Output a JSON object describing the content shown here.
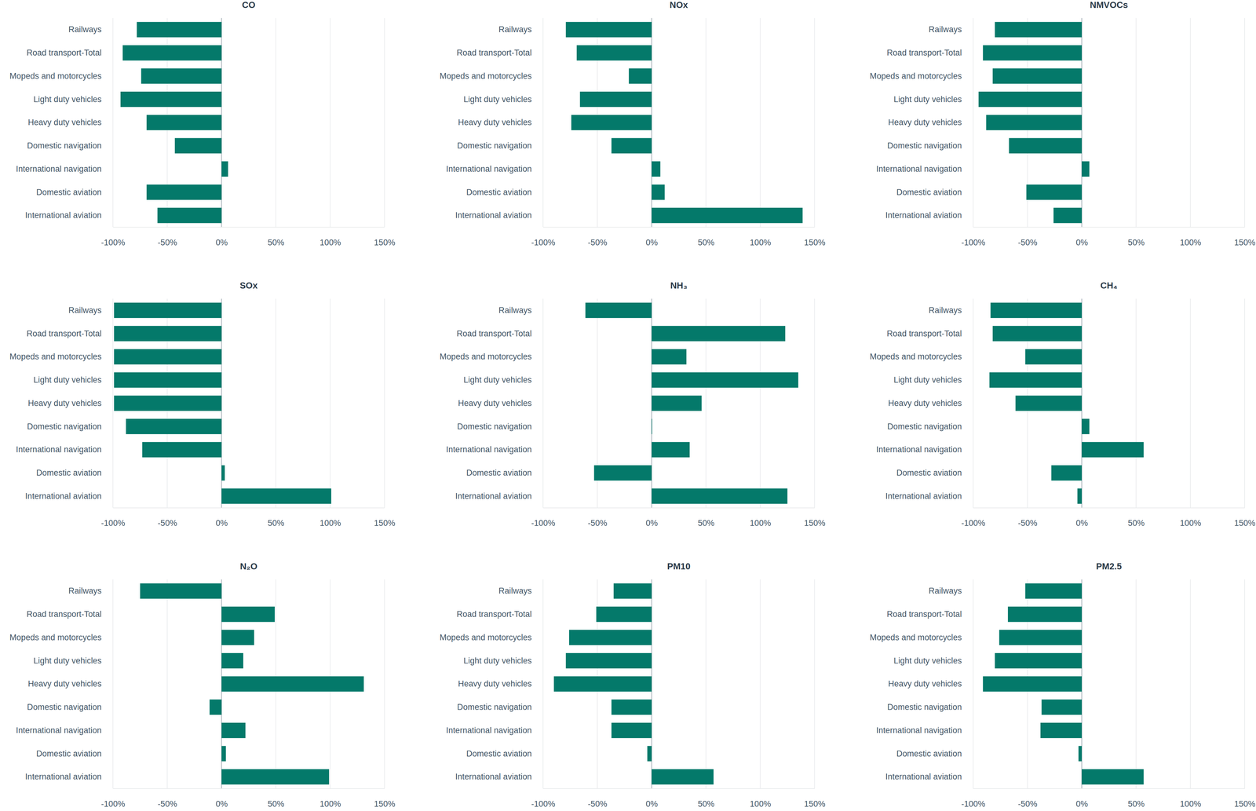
{
  "chart_data": [
    {
      "type": "bar",
      "title": "CO",
      "orientation": "horizontal",
      "grid": true,
      "color": "#04796a",
      "categories": [
        "Railways",
        "Road transport-Total",
        "Mopeds and motorcycles",
        "Light duty vehicles",
        "Heavy duty vehicles",
        "Domestic navigation",
        "International navigation",
        "Domestic aviation",
        "International aviation"
      ],
      "values": [
        -78,
        -91,
        -74,
        -93,
        -69,
        -43,
        6,
        -69,
        -59
      ],
      "xlim": [
        -100,
        150
      ],
      "xticks": [
        {
          "value": -100,
          "label": "-100%"
        },
        {
          "value": -50,
          "label": "-50%"
        },
        {
          "value": 0,
          "label": "0%"
        },
        {
          "value": 50,
          "label": "50%"
        },
        {
          "value": 100,
          "label": "100%"
        },
        {
          "value": 150,
          "label": "150%"
        }
      ]
    },
    {
      "type": "bar",
      "title": "NOx",
      "orientation": "horizontal",
      "grid": true,
      "color": "#04796a",
      "categories": [
        "Railways",
        "Road transport-Total",
        "Mopeds and motorcycles",
        "Light duty vehicles",
        "Heavy duty vehicles",
        "Domestic navigation",
        "International navigation",
        "Domestic aviation",
        "International aviation"
      ],
      "values": [
        -79,
        -69,
        -21,
        -66,
        -74,
        -37,
        8,
        12,
        139
      ],
      "xlim": [
        -100,
        150
      ],
      "xticks": [
        {
          "value": -100,
          "label": "-100%"
        },
        {
          "value": -50,
          "label": "-50%"
        },
        {
          "value": 0,
          "label": "0%"
        },
        {
          "value": 50,
          "label": "50%"
        },
        {
          "value": 100,
          "label": "100%"
        },
        {
          "value": 150,
          "label": "150%"
        }
      ]
    },
    {
      "type": "bar",
      "title": "NMVOCs",
      "orientation": "horizontal",
      "grid": true,
      "color": "#04796a",
      "categories": [
        "Railways",
        "Road transport-Total",
        "Mopeds and motorcycles",
        "Light duty vehicles",
        "Heavy duty vehicles",
        "Domestic navigation",
        "International navigation",
        "Domestic aviation",
        "International aviation"
      ],
      "values": [
        -80,
        -91,
        -82,
        -95,
        -88,
        -67,
        7,
        -51,
        -26
      ],
      "xlim": [
        -100,
        150
      ],
      "xticks": [
        {
          "value": -100,
          "label": "-100%"
        },
        {
          "value": -50,
          "label": "-50%"
        },
        {
          "value": 0,
          "label": "0%"
        },
        {
          "value": 50,
          "label": "50%"
        },
        {
          "value": 100,
          "label": "100%"
        },
        {
          "value": 150,
          "label": "150%"
        }
      ]
    },
    {
      "type": "bar",
      "title": "SOx",
      "orientation": "horizontal",
      "grid": true,
      "color": "#04796a",
      "categories": [
        "Railways",
        "Road transport-Total",
        "Mopeds and motorcycles",
        "Light duty vehicles",
        "Heavy duty vehicles",
        "Domestic navigation",
        "International navigation",
        "Domestic aviation",
        "International aviation"
      ],
      "values": [
        -99,
        -99,
        -99,
        -99,
        -99,
        -88,
        -73,
        3,
        101
      ],
      "xlim": [
        -100,
        150
      ],
      "xticks": [
        {
          "value": -100,
          "label": "-100%"
        },
        {
          "value": -50,
          "label": "-50%"
        },
        {
          "value": 0,
          "label": "0%"
        },
        {
          "value": 50,
          "label": "50%"
        },
        {
          "value": 100,
          "label": "100%"
        },
        {
          "value": 150,
          "label": "150%"
        }
      ]
    },
    {
      "type": "bar",
      "title": "NH₃",
      "orientation": "horizontal",
      "grid": true,
      "color": "#04796a",
      "categories": [
        "Railways",
        "Road transport-Total",
        "Mopeds and motorcycles",
        "Light duty vehicles",
        "Heavy duty vehicles",
        "Domestic navigation",
        "International navigation",
        "Domestic aviation",
        "International aviation"
      ],
      "values": [
        -61,
        123,
        32,
        135,
        46,
        0.5,
        35,
        -53,
        125
      ],
      "xlim": [
        -100,
        150
      ],
      "xticks": [
        {
          "value": -100,
          "label": "-100%"
        },
        {
          "value": -50,
          "label": "-50%"
        },
        {
          "value": 0,
          "label": "0%"
        },
        {
          "value": 50,
          "label": "50%"
        },
        {
          "value": 100,
          "label": "100%"
        },
        {
          "value": 150,
          "label": "150%"
        }
      ]
    },
    {
      "type": "bar",
      "title": "CH₄",
      "orientation": "horizontal",
      "grid": true,
      "color": "#04796a",
      "categories": [
        "Railways",
        "Road transport-Total",
        "Mopeds and motorcycles",
        "Light duty vehicles",
        "Heavy duty vehicles",
        "Domestic navigation",
        "International navigation",
        "Domestic aviation",
        "International aviation"
      ],
      "values": [
        -84,
        -82,
        -52,
        -85,
        -61,
        7,
        57,
        -28,
        -4
      ],
      "xlim": [
        -100,
        150
      ],
      "xticks": [
        {
          "value": -100,
          "label": "-100%"
        },
        {
          "value": -50,
          "label": "-50%"
        },
        {
          "value": 0,
          "label": "0%"
        },
        {
          "value": 50,
          "label": "50%"
        },
        {
          "value": 100,
          "label": "100%"
        },
        {
          "value": 150,
          "label": "150%"
        }
      ]
    },
    {
      "type": "bar",
      "title": "N₂O",
      "orientation": "horizontal",
      "grid": true,
      "color": "#04796a",
      "categories": [
        "Railways",
        "Road transport-Total",
        "Mopeds and motorcycles",
        "Light duty vehicles",
        "Heavy duty vehicles",
        "Domestic navigation",
        "International navigation",
        "Domestic aviation",
        "International aviation"
      ],
      "values": [
        -75,
        49,
        30,
        20,
        131,
        -11,
        22,
        4,
        99
      ],
      "xlim": [
        -100,
        150
      ],
      "xticks": [
        {
          "value": -100,
          "label": "-100%"
        },
        {
          "value": -50,
          "label": "-50%"
        },
        {
          "value": 0,
          "label": "0%"
        },
        {
          "value": 50,
          "label": "50%"
        },
        {
          "value": 100,
          "label": "100%"
        },
        {
          "value": 150,
          "label": "150%"
        }
      ]
    },
    {
      "type": "bar",
      "title": "PM10",
      "orientation": "horizontal",
      "grid": true,
      "color": "#04796a",
      "categories": [
        "Railways",
        "Road transport-Total",
        "Mopeds and motorcycles",
        "Light duty vehicles",
        "Heavy duty vehicles",
        "Domestic navigation",
        "International navigation",
        "Domestic aviation",
        "International aviation"
      ],
      "values": [
        -35,
        -51,
        -76,
        -79,
        -90,
        -37,
        -37,
        -4,
        57
      ],
      "xlim": [
        -100,
        150
      ],
      "xticks": [
        {
          "value": -100,
          "label": "-100%"
        },
        {
          "value": -50,
          "label": "-50%"
        },
        {
          "value": 0,
          "label": "0%"
        },
        {
          "value": 50,
          "label": "50%"
        },
        {
          "value": 100,
          "label": "100%"
        },
        {
          "value": 150,
          "label": "150%"
        }
      ]
    },
    {
      "type": "bar",
      "title": "PM2.5",
      "orientation": "horizontal",
      "grid": true,
      "color": "#04796a",
      "categories": [
        "Railways",
        "Road transport-Total",
        "Mopeds and motorcycles",
        "Light duty vehicles",
        "Heavy duty vehicles",
        "Domestic navigation",
        "International navigation",
        "Domestic aviation",
        "International aviation"
      ],
      "values": [
        -52,
        -68,
        -76,
        -80,
        -91,
        -37,
        -38,
        -3,
        57
      ],
      "xlim": [
        -100,
        150
      ],
      "xticks": [
        {
          "value": -100,
          "label": "-100%"
        },
        {
          "value": -50,
          "label": "-50%"
        },
        {
          "value": 0,
          "label": "0%"
        },
        {
          "value": 50,
          "label": "50%"
        },
        {
          "value": 100,
          "label": "100%"
        },
        {
          "value": 150,
          "label": "150%"
        }
      ]
    }
  ]
}
